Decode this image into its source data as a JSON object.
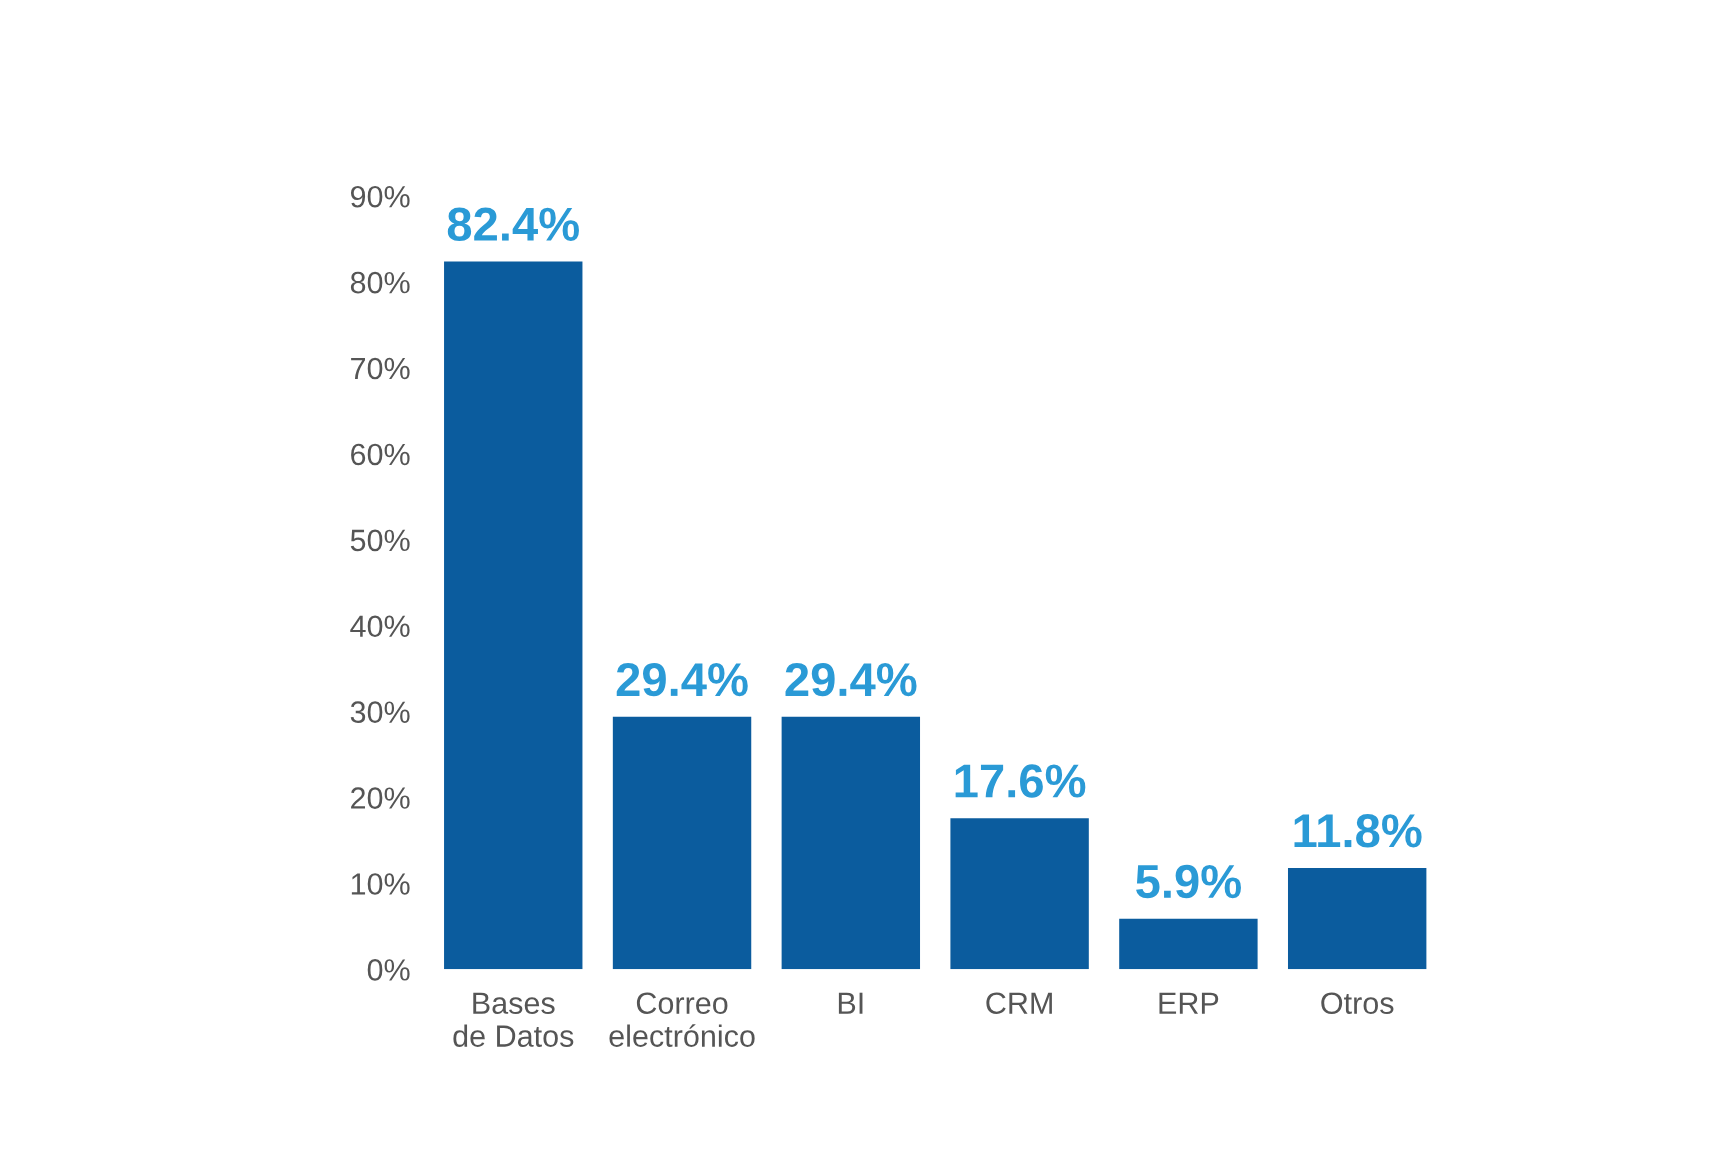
{
  "chart_data": {
    "type": "bar",
    "categories": [
      "Bases\nde Datos",
      "Correo\nelectrónico",
      "BI",
      "CRM",
      "ERP",
      "Otros"
    ],
    "values": [
      82.4,
      29.4,
      29.4,
      17.6,
      5.9,
      11.8
    ],
    "value_labels": [
      "82.4%",
      "29.4%",
      "29.4%",
      "17.6%",
      "5.9%",
      "11.8%"
    ],
    "color": "#0b5c9e",
    "ylim": [
      0,
      90
    ],
    "yticks": [
      {
        "value": 0,
        "label": "0%"
      },
      {
        "value": 10,
        "label": "10%"
      },
      {
        "value": 20,
        "label": "20%"
      },
      {
        "value": 30,
        "label": "30%"
      },
      {
        "value": 40,
        "label": "40%"
      },
      {
        "value": 50,
        "label": "50%"
      },
      {
        "value": 60,
        "label": "60%"
      },
      {
        "value": 70,
        "label": "70%"
      },
      {
        "value": 80,
        "label": "80%"
      },
      {
        "value": 90,
        "label": "90%"
      }
    ],
    "grid": false,
    "legend": false
  }
}
